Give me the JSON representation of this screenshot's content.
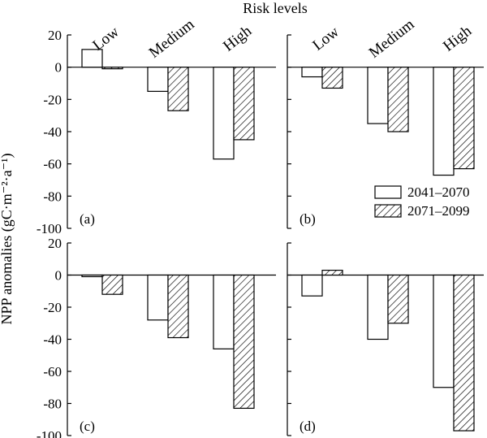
{
  "chart_data": {
    "type": "bar",
    "title": "Risk levels",
    "ylabel": "NPP anomalies (gC·m⁻²·a⁻¹)",
    "xlabel": "",
    "categories": [
      "Low",
      "Medium",
      "High"
    ],
    "ylim": [
      -100,
      20
    ],
    "yticks": [
      20,
      0,
      -20,
      -40,
      -60,
      -80,
      -100
    ],
    "grid": false,
    "legend": {
      "placement": "inside panel (b), bottom-right",
      "entries": [
        "2041–2070",
        "2071–2099"
      ]
    },
    "panels": [
      {
        "label": "(a)",
        "series": [
          {
            "name": "2041–2070",
            "values": [
              11,
              -15,
              -57
            ]
          },
          {
            "name": "2071–2099",
            "values": [
              -1,
              -27,
              -45
            ]
          }
        ]
      },
      {
        "label": "(b)",
        "series": [
          {
            "name": "2041–2070",
            "values": [
              -6,
              -35,
              -67
            ]
          },
          {
            "name": "2071–2099",
            "values": [
              -13,
              -40,
              -63
            ]
          }
        ]
      },
      {
        "label": "(c)",
        "series": [
          {
            "name": "2041–2070",
            "values": [
              -1,
              -28,
              -46
            ]
          },
          {
            "name": "2071–2099",
            "values": [
              -12,
              -39,
              -83
            ]
          }
        ]
      },
      {
        "label": "(d)",
        "series": [
          {
            "name": "2041–2070",
            "values": [
              -13,
              -40,
              -70
            ]
          },
          {
            "name": "2071–2099",
            "values": [
              3,
              -30,
              -97
            ]
          }
        ]
      }
    ],
    "colors": {
      "series1_fill": "#ffffff",
      "series2_pattern": "diagonal-hatch",
      "stroke": "#000000"
    }
  }
}
